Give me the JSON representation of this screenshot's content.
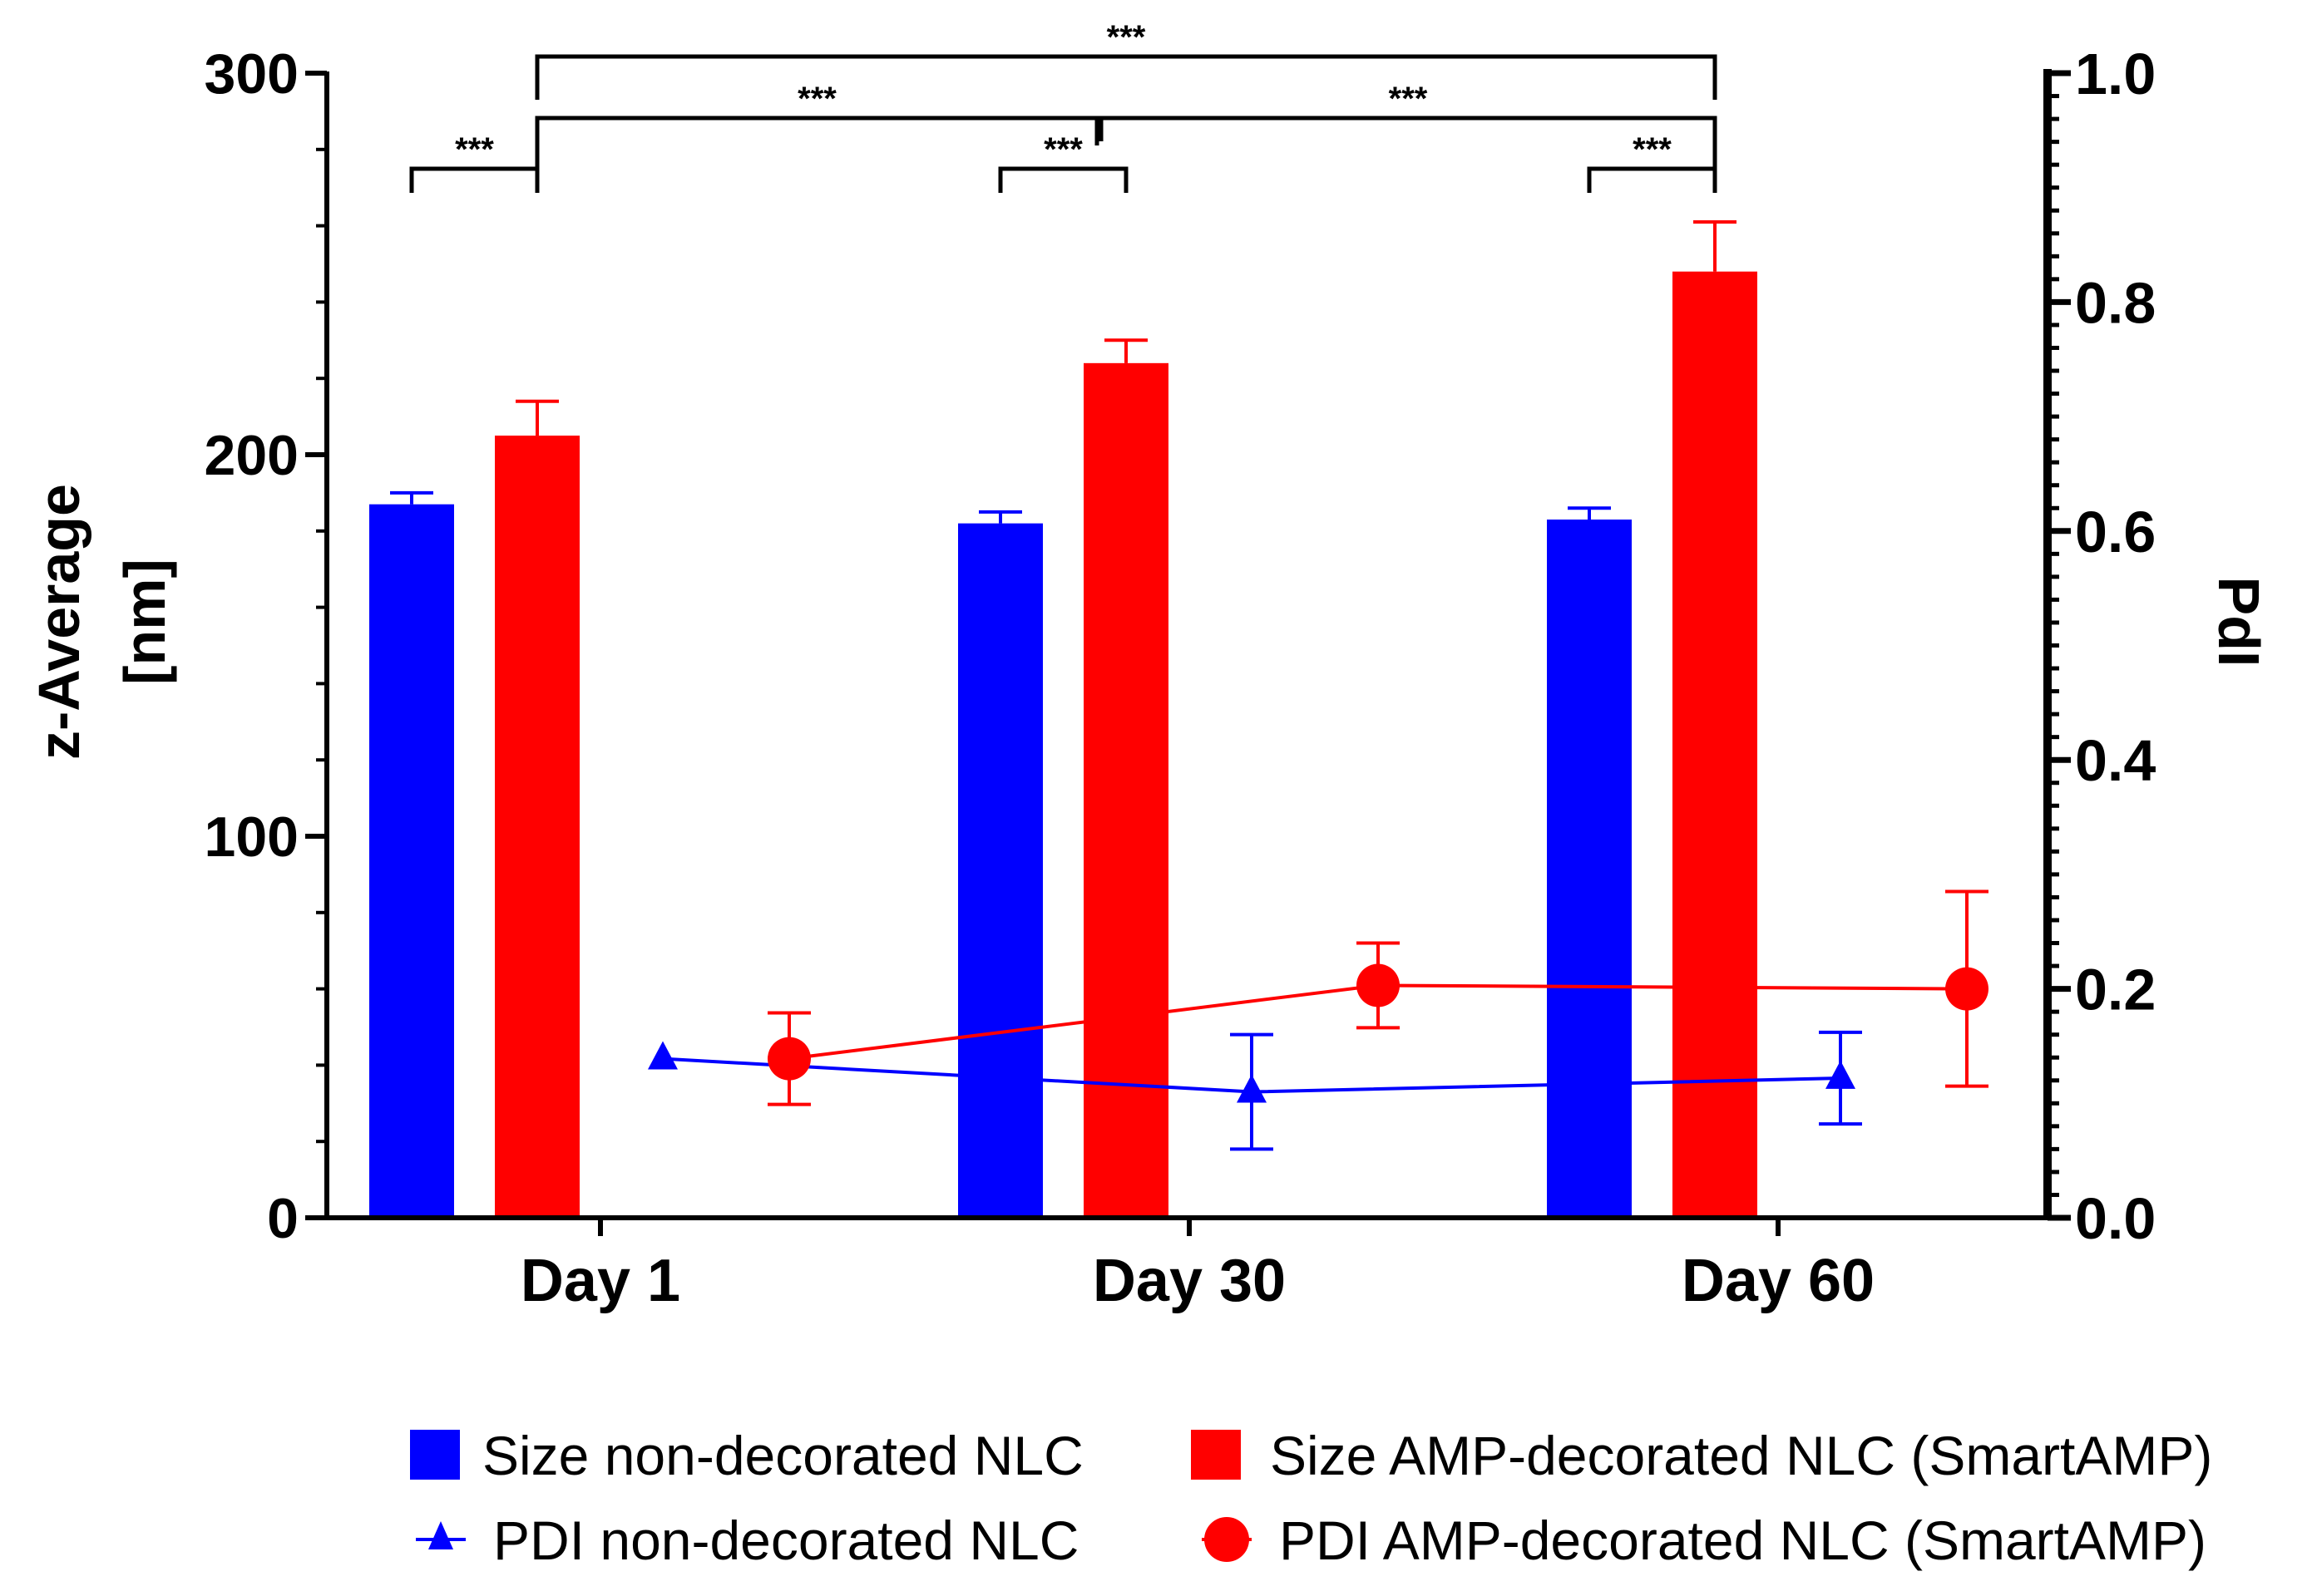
{
  "chart_data": {
    "type": "bar",
    "categories": [
      "Day 1",
      "Day 30",
      "Day 60"
    ],
    "left_axis": {
      "label_lines": [
        "z-Average",
        "[nm]"
      ],
      "ylim": [
        0,
        300
      ],
      "ticks": [
        0,
        100,
        200,
        300
      ],
      "tick_labels": [
        "0",
        "100",
        "200",
        "300"
      ]
    },
    "right_axis": {
      "label": "PdI",
      "ylim": [
        0,
        1.0
      ],
      "ticks": [
        0,
        0.2,
        0.4,
        0.6,
        0.8,
        1.0
      ],
      "tick_labels": [
        "0.0",
        "0.2",
        "0.4",
        "0.6",
        "0.8",
        "1.0"
      ]
    },
    "bar_series": [
      {
        "name": "Size non-decorated NLC",
        "color": "#0000ff",
        "values": [
          187,
          182,
          183
        ],
        "errors": [
          3,
          3,
          3
        ]
      },
      {
        "name": "Size AMP-decorated NLC (SmartAMP)",
        "color": "#ff0000",
        "values": [
          205,
          224,
          248
        ],
        "errors": [
          9,
          6,
          13
        ]
      }
    ],
    "line_series": [
      {
        "name": "PDI non-decorated NLC",
        "color": "#0000ff",
        "marker": "triangle",
        "values": [
          0.139,
          0.11,
          0.122
        ],
        "errors": [
          0.0,
          0.05,
          0.04
        ]
      },
      {
        "name": "PDI AMP-decorated NLC (SmartAMP)",
        "color": "#ff0000",
        "marker": "circle",
        "values": [
          0.139,
          0.203,
          0.2
        ],
        "errors": [
          0.04,
          0.037,
          0.085
        ]
      }
    ],
    "significance": [
      {
        "label": "***",
        "from": "Size non-decorated NLC|Day 1",
        "to": "Size AMP-decorated NLC (SmartAMP)|Day 1"
      },
      {
        "label": "***",
        "from": "Size non-decorated NLC|Day 30",
        "to": "Size AMP-decorated NLC (SmartAMP)|Day 30"
      },
      {
        "label": "***",
        "from": "Size non-decorated NLC|Day 60",
        "to": "Size AMP-decorated NLC (SmartAMP)|Day 60"
      },
      {
        "label": "***",
        "from": "Size AMP-decorated NLC (SmartAMP)|Day 1",
        "to": "Size AMP-decorated NLC (SmartAMP)|Day 30"
      },
      {
        "label": "***",
        "from": "Size AMP-decorated NLC (SmartAMP)|Day 30",
        "to": "Size AMP-decorated NLC (SmartAMP)|Day 60"
      },
      {
        "label": "***",
        "from": "Size AMP-decorated NLC (SmartAMP)|Day 1",
        "to": "Size AMP-decorated NLC (SmartAMP)|Day 60"
      }
    ],
    "legend": [
      {
        "label": "Size non-decorated NLC",
        "symbol": "square",
        "color": "#0000ff"
      },
      {
        "label": "Size AMP-decorated NLC (SmartAMP)",
        "symbol": "square",
        "color": "#ff0000"
      },
      {
        "label": "PDI non-decorated NLC",
        "symbol": "triangle",
        "color": "#0000ff"
      },
      {
        "label": "PDI AMP-decorated NLC (SmartAMP)",
        "symbol": "circle",
        "color": "#ff0000"
      }
    ],
    "legend_position": "bottom"
  }
}
